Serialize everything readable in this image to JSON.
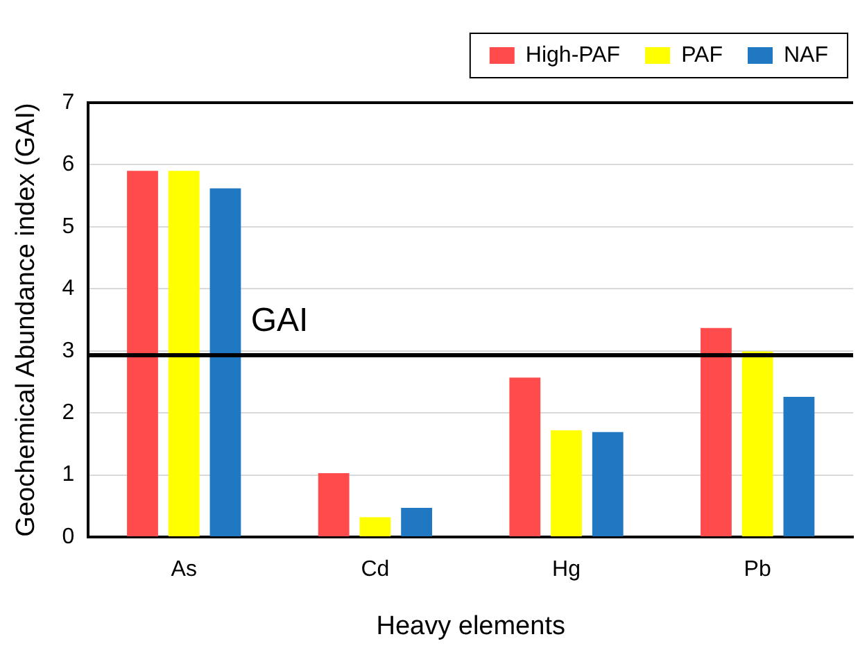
{
  "chart_data": {
    "type": "bar",
    "xlabel": "Heavy elements",
    "ylabel": "Geochemical Abundance index (GAI)",
    "categories": [
      "As",
      "Cd",
      "Hg",
      "Pb"
    ],
    "series": [
      {
        "name": "High-PAF",
        "color": "#ff4b4b",
        "values": [
          5.9,
          1.03,
          2.57,
          3.37
        ]
      },
      {
        "name": "PAF",
        "color": "#ffff00",
        "values": [
          5.9,
          0.32,
          1.72,
          2.99
        ]
      },
      {
        "name": "NAF",
        "color": "#1f78c1",
        "values": [
          5.62,
          0.47,
          1.69,
          2.26
        ]
      }
    ],
    "ylim": [
      0,
      7
    ],
    "yticks": [
      0,
      1,
      2,
      3,
      4,
      5,
      6,
      7
    ],
    "grid": "y",
    "legend": "top right",
    "ref_lines": [
      {
        "axis": "y",
        "value": 2.93,
        "label": "GAI",
        "color": "#000000"
      }
    ]
  }
}
